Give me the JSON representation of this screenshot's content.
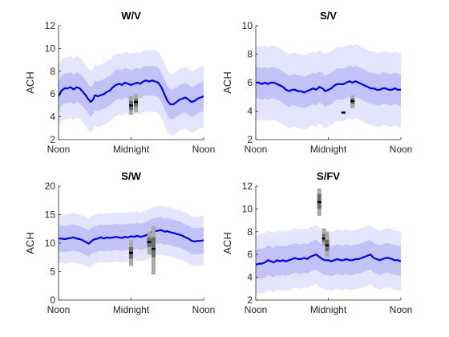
{
  "chart_data": [
    {
      "type": "area",
      "title": "W/V",
      "xlabel": "",
      "ylabel": "ACH",
      "xlim": [
        0,
        24
      ],
      "ylim": [
        2,
        12
      ],
      "xticks": [
        0,
        12,
        24
      ],
      "xticklabels": [
        "Noon",
        "Midnight",
        "Noon"
      ],
      "yticks": [
        2,
        4,
        6,
        8,
        10,
        12
      ],
      "mean": [
        [
          0,
          5.8
        ],
        [
          0.5,
          6.3
        ],
        [
          1,
          6.5
        ],
        [
          1.5,
          6.5
        ],
        [
          2,
          6.6
        ],
        [
          2.5,
          6.4
        ],
        [
          3,
          6.6
        ],
        [
          3.5,
          6.5
        ],
        [
          4,
          6.2
        ],
        [
          4.5,
          5.9
        ],
        [
          5,
          5.5
        ],
        [
          5.3,
          5.3
        ],
        [
          5.7,
          5.5
        ],
        [
          6,
          5.9
        ],
        [
          6.5,
          5.8
        ],
        [
          7,
          5.9
        ],
        [
          7.5,
          6.0
        ],
        [
          8,
          6.2
        ],
        [
          8.5,
          6.3
        ],
        [
          9,
          6.6
        ],
        [
          9.5,
          6.8
        ],
        [
          10,
          6.9
        ],
        [
          10.5,
          6.8
        ],
        [
          11,
          7.0
        ],
        [
          11.5,
          6.9
        ],
        [
          12,
          6.8
        ],
        [
          12.5,
          6.9
        ],
        [
          13,
          7.0
        ],
        [
          13.5,
          6.9
        ],
        [
          14,
          7.1
        ],
        [
          14.5,
          7.2
        ],
        [
          15,
          7.1
        ],
        [
          15.5,
          7.2
        ],
        [
          16,
          7.1
        ],
        [
          16.5,
          7.0
        ],
        [
          17,
          6.6
        ],
        [
          17.5,
          6.0
        ],
        [
          18,
          5.4
        ],
        [
          18.5,
          5.1
        ],
        [
          19,
          5.1
        ],
        [
          19.5,
          5.3
        ],
        [
          20,
          5.5
        ],
        [
          20.5,
          5.6
        ],
        [
          21,
          5.7
        ],
        [
          21.5,
          5.5
        ],
        [
          22,
          5.3
        ],
        [
          22.5,
          5.4
        ],
        [
          23,
          5.6
        ],
        [
          23.5,
          5.7
        ],
        [
          24,
          5.8
        ]
      ],
      "inner_band_halfwidth": 1.3,
      "outer_band_halfwidth": 2.7,
      "colors": {
        "mean": "#0000dd",
        "inner_band": "#c2c2f7",
        "outer_band": "#e4e4fc",
        "box_outer": "#a9a9a9",
        "box_inner": "#6b6b6b",
        "median": "#000000"
      },
      "boxes": [
        {
          "x": 12.0,
          "low": 4.2,
          "q1": 4.6,
          "median": 5.0,
          "q3": 5.4,
          "high": 5.8
        },
        {
          "x": 12.8,
          "low": 4.4,
          "q1": 4.9,
          "median": 5.3,
          "q3": 5.6,
          "high": 6.0
        }
      ]
    },
    {
      "type": "area",
      "title": "S/V",
      "xlabel": "",
      "ylabel": "ACH",
      "xlim": [
        0,
        24
      ],
      "ylim": [
        2,
        10
      ],
      "xticks": [
        0,
        12,
        24
      ],
      "xticklabels": [
        "Noon",
        "Midnight",
        "Noon"
      ],
      "yticks": [
        2,
        4,
        6,
        8,
        10
      ],
      "mean": [
        [
          0,
          6.0
        ],
        [
          0.5,
          6.0
        ],
        [
          1,
          5.9
        ],
        [
          1.5,
          6.0
        ],
        [
          2,
          5.9
        ],
        [
          2.5,
          6.0
        ],
        [
          3,
          6.0
        ],
        [
          3.5,
          5.9
        ],
        [
          4,
          5.8
        ],
        [
          4.5,
          5.7
        ],
        [
          5,
          5.5
        ],
        [
          5.5,
          5.4
        ],
        [
          6,
          5.5
        ],
        [
          6.5,
          5.5
        ],
        [
          7,
          5.4
        ],
        [
          7.5,
          5.4
        ],
        [
          8,
          5.3
        ],
        [
          8.5,
          5.4
        ],
        [
          9,
          5.5
        ],
        [
          9.5,
          5.6
        ],
        [
          10,
          5.5
        ],
        [
          10.5,
          5.7
        ],
        [
          11,
          5.6
        ],
        [
          11.5,
          5.4
        ],
        [
          12,
          5.5
        ],
        [
          12.5,
          5.6
        ],
        [
          13,
          5.8
        ],
        [
          13.5,
          5.9
        ],
        [
          14,
          5.9
        ],
        [
          14.5,
          5.9
        ],
        [
          15,
          6.0
        ],
        [
          15.5,
          6.1
        ],
        [
          16,
          6.0
        ],
        [
          16.5,
          6.1
        ],
        [
          17,
          6.0
        ],
        [
          17.5,
          5.9
        ],
        [
          18,
          5.8
        ],
        [
          18.5,
          5.7
        ],
        [
          19,
          5.6
        ],
        [
          19.5,
          5.6
        ],
        [
          20,
          5.5
        ],
        [
          20.5,
          5.5
        ],
        [
          21,
          5.6
        ],
        [
          21.5,
          5.6
        ],
        [
          22,
          5.5
        ],
        [
          22.5,
          5.5
        ],
        [
          23,
          5.6
        ],
        [
          23.5,
          5.5
        ],
        [
          24,
          5.5
        ]
      ],
      "inner_band_halfwidth": 1.1,
      "outer_band_halfwidth": 2.6,
      "colors": {
        "mean": "#0000dd",
        "inner_band": "#c2c2f7",
        "outer_band": "#e4e4fc",
        "box_outer": "#a9a9a9",
        "box_inner": "#6b6b6b",
        "median": "#000000"
      },
      "boxes": [
        {
          "x": 14.5,
          "low": 3.8,
          "q1": 3.85,
          "median": 3.9,
          "q3": 3.95,
          "high": 4.0
        },
        {
          "x": 16.0,
          "low": 4.2,
          "q1": 4.5,
          "median": 4.7,
          "q3": 4.9,
          "high": 5.1
        }
      ]
    },
    {
      "type": "area",
      "title": "S/W",
      "xlabel": "",
      "ylabel": "ACH",
      "xlim": [
        0,
        24
      ],
      "ylim": [
        0,
        20
      ],
      "xticks": [
        0,
        12,
        24
      ],
      "xticklabels": [
        "Noon",
        "Midnight",
        "Noon"
      ],
      "yticks": [
        0,
        5,
        10,
        15,
        20
      ],
      "mean": [
        [
          0,
          10.8
        ],
        [
          0.5,
          10.8
        ],
        [
          1,
          10.7
        ],
        [
          1.5,
          10.8
        ],
        [
          2,
          10.9
        ],
        [
          2.5,
          11.0
        ],
        [
          3,
          10.8
        ],
        [
          3.5,
          10.7
        ],
        [
          4,
          10.5
        ],
        [
          4.5,
          10.2
        ],
        [
          5,
          9.9
        ],
        [
          5.5,
          10.4
        ],
        [
          6,
          10.7
        ],
        [
          6.5,
          10.8
        ],
        [
          7,
          11.0
        ],
        [
          7.5,
          10.8
        ],
        [
          8,
          11.0
        ],
        [
          8.5,
          10.9
        ],
        [
          9,
          11.0
        ],
        [
          9.5,
          11.1
        ],
        [
          10,
          11.0
        ],
        [
          10.5,
          10.9
        ],
        [
          11,
          11.1
        ],
        [
          11.5,
          11.0
        ],
        [
          12,
          11.2
        ],
        [
          12.5,
          11.1
        ],
        [
          13,
          11.3
        ],
        [
          13.5,
          11.1
        ],
        [
          14,
          11.2
        ],
        [
          14.5,
          11.4
        ],
        [
          15,
          11.7
        ],
        [
          15.5,
          12.0
        ],
        [
          16,
          12.1
        ],
        [
          16.5,
          12.2
        ],
        [
          17,
          12.3
        ],
        [
          17.5,
          12.0
        ],
        [
          18,
          12.1
        ],
        [
          18.5,
          11.9
        ],
        [
          19,
          11.8
        ],
        [
          19.5,
          11.6
        ],
        [
          20,
          11.5
        ],
        [
          20.5,
          11.3
        ],
        [
          21,
          11.0
        ],
        [
          21.5,
          10.8
        ],
        [
          22,
          10.4
        ],
        [
          22.5,
          10.3
        ],
        [
          23,
          10.4
        ],
        [
          23.5,
          10.4
        ],
        [
          24,
          10.5
        ]
      ],
      "inner_band_halfwidth": 2.3,
      "outer_band_halfwidth": 4.3,
      "colors": {
        "mean": "#0000dd",
        "inner_band": "#c2c2f7",
        "outer_band": "#e4e4fc",
        "box_outer": "#a9a9a9",
        "box_inner": "#6b6b6b",
        "median": "#000000"
      },
      "boxes": [
        {
          "x": 12.0,
          "low": 6.0,
          "q1": 7.3,
          "median": 8.3,
          "q3": 9.3,
          "high": 10.5
        },
        {
          "x": 15.0,
          "low": 8.0,
          "q1": 9.3,
          "median": 10.2,
          "q3": 11.0,
          "high": 12.0
        },
        {
          "x": 15.7,
          "low": 4.5,
          "q1": 7.5,
          "median": 9.0,
          "q3": 11.0,
          "high": 13.0
        }
      ]
    },
    {
      "type": "area",
      "title": "S/FV",
      "xlabel": "",
      "ylabel": "ACH",
      "xlim": [
        0,
        24
      ],
      "ylim": [
        2,
        12
      ],
      "xticks": [
        0,
        12,
        24
      ],
      "xticklabels": [
        "Noon",
        "Midnight",
        "Noon"
      ],
      "yticks": [
        2,
        4,
        6,
        8,
        10,
        12
      ],
      "mean": [
        [
          0,
          5.1
        ],
        [
          0.5,
          5.2
        ],
        [
          1,
          5.2
        ],
        [
          1.5,
          5.3
        ],
        [
          2,
          5.5
        ],
        [
          2.5,
          5.4
        ],
        [
          3,
          5.3
        ],
        [
          3.5,
          5.5
        ],
        [
          4,
          5.4
        ],
        [
          4.5,
          5.5
        ],
        [
          5,
          5.4
        ],
        [
          5.5,
          5.5
        ],
        [
          6,
          5.6
        ],
        [
          6.5,
          5.7
        ],
        [
          7,
          5.6
        ],
        [
          7.5,
          5.6
        ],
        [
          8,
          5.7
        ],
        [
          8.5,
          5.6
        ],
        [
          9,
          5.8
        ],
        [
          9.5,
          5.9
        ],
        [
          10,
          6.0
        ],
        [
          10.5,
          5.8
        ],
        [
          11,
          5.6
        ],
        [
          11.5,
          5.5
        ],
        [
          12,
          5.5
        ],
        [
          12.5,
          5.4
        ],
        [
          13,
          5.5
        ],
        [
          13.5,
          5.6
        ],
        [
          14,
          5.5
        ],
        [
          14.5,
          5.5
        ],
        [
          15,
          5.6
        ],
        [
          15.5,
          5.5
        ],
        [
          16,
          5.5
        ],
        [
          16.5,
          5.6
        ],
        [
          17,
          5.6
        ],
        [
          17.5,
          5.7
        ],
        [
          18,
          5.8
        ],
        [
          18.5,
          5.9
        ],
        [
          19,
          6.0
        ],
        [
          19.5,
          5.7
        ],
        [
          20,
          5.6
        ],
        [
          20.5,
          5.5
        ],
        [
          21,
          5.6
        ],
        [
          21.5,
          5.7
        ],
        [
          22,
          5.7
        ],
        [
          22.5,
          5.6
        ],
        [
          23,
          5.5
        ],
        [
          23.5,
          5.5
        ],
        [
          24,
          5.4
        ]
      ],
      "inner_band_halfwidth": 1.3,
      "outer_band_halfwidth": 2.6,
      "colors": {
        "mean": "#0000dd",
        "inner_band": "#c2c2f7",
        "outer_band": "#e4e4fc",
        "box_outer": "#a9a9a9",
        "box_inner": "#6b6b6b",
        "median": "#000000"
      },
      "boxes": [
        {
          "x": 10.5,
          "low": 9.4,
          "q1": 10.0,
          "median": 10.6,
          "q3": 11.3,
          "high": 11.8
        },
        {
          "x": 11.3,
          "low": 6.8,
          "q1": 7.1,
          "median": 7.4,
          "q3": 7.8,
          "high": 8.3
        },
        {
          "x": 11.8,
          "low": 5.8,
          "q1": 6.3,
          "median": 6.8,
          "q3": 7.3,
          "high": 8.0
        }
      ]
    }
  ]
}
